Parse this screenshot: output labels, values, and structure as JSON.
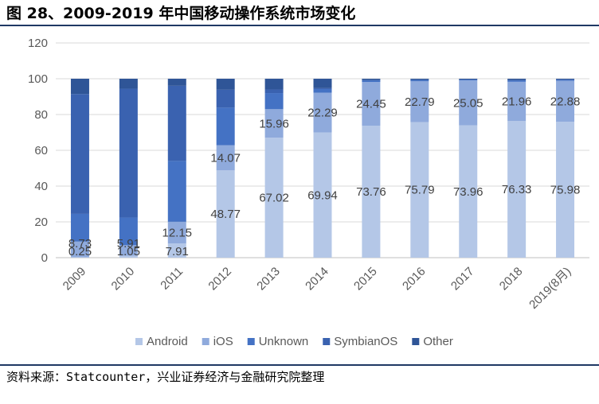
{
  "header": {
    "title": "图 28、2009-2019 年中国移动操作系统市场变化"
  },
  "footer": {
    "source": "资料来源：Statcounter，兴业证券经济与金融研究院整理"
  },
  "colors": {
    "Android": "#b4c7e7",
    "iOS": "#8faadc",
    "Unknown": "#4472c4",
    "SymbianOS": "#3a62b0",
    "Other": "#2f5597"
  },
  "chart_data": {
    "type": "bar",
    "stacked": true,
    "categories": [
      "2009",
      "2010",
      "2011",
      "2012",
      "2013",
      "2014",
      "2015",
      "2016",
      "2017",
      "2018",
      "2019(8月)"
    ],
    "ylim": [
      0,
      120
    ],
    "yticks": [
      "0",
      "20",
      "40",
      "60",
      "80",
      "100",
      "120"
    ],
    "grid": true,
    "legend_position": "bottom",
    "series": [
      {
        "name": "Android",
        "values": [
          0.25,
          1.05,
          7.91,
          48.77,
          67.02,
          69.94,
          73.76,
          75.79,
          73.96,
          76.33,
          75.98
        ],
        "labels": [
          "0.25",
          "1.05",
          "7.91",
          "48.77",
          "67.02",
          "69.94",
          "73.76",
          "75.79",
          "73.96",
          "76.33",
          "75.98"
        ]
      },
      {
        "name": "iOS",
        "values": [
          8.73,
          5.91,
          12.15,
          14.07,
          15.96,
          22.29,
          24.45,
          22.79,
          25.05,
          21.96,
          22.88
        ],
        "labels": [
          "8.73",
          "5.91",
          "12.15",
          "14.07",
          "15.96",
          "22.29",
          "24.45",
          "22.79",
          "25.05",
          "21.96",
          "22.88"
        ]
      },
      {
        "name": "Unknown",
        "values": [
          15.5,
          15.5,
          34.0,
          21.0,
          9.0,
          2.0,
          1.0,
          0.8,
          0.5,
          0.9,
          0.6
        ]
      },
      {
        "name": "SymbianOS",
        "values": [
          67.0,
          72.0,
          42.0,
          10.0,
          2.0,
          0.5,
          0.0,
          0.0,
          0.0,
          0.0,
          0.0
        ]
      },
      {
        "name": "Other",
        "values": [
          8.52,
          5.54,
          3.94,
          6.16,
          6.02,
          5.27,
          0.79,
          0.61,
          0.49,
          0.81,
          0.54
        ]
      }
    ]
  }
}
